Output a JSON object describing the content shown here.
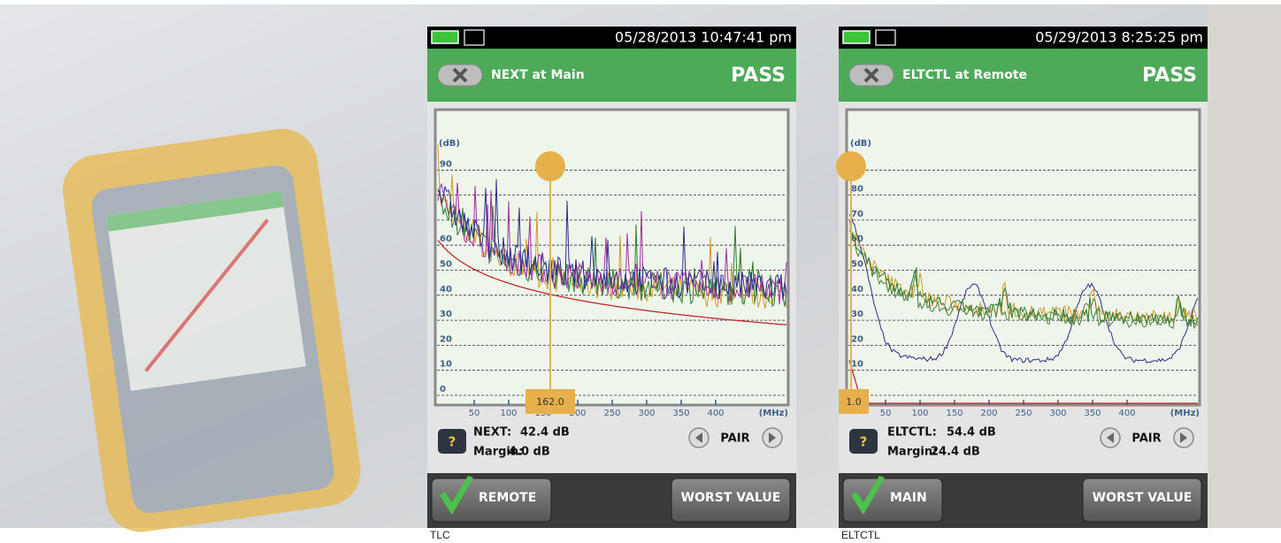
{
  "screens": [
    {
      "status_time": "05/28/2013 10:47:41 pm",
      "title": "NEXT at Main",
      "result": "PASS",
      "y_unit": "(dB)",
      "y_ticks": [
        "0",
        "10",
        "20",
        "30",
        "40",
        "50",
        "60",
        "90"
      ],
      "x_unit": "(MHz)",
      "x_ticks": [
        "50",
        "100",
        "150",
        "200",
        "250",
        "300",
        "350",
        "400"
      ],
      "marker": "162.0",
      "help": "?",
      "readout": [
        {
          "label": "NEXT:",
          "value": "42.4 dB"
        },
        {
          "label": "Margin:",
          "value": "4.0 dB"
        }
      ],
      "pair": "PAIR",
      "left_button": "REMOTE",
      "right_button": "WORST VALUE",
      "caption": "TLC"
    },
    {
      "status_time": "05/29/2013 8:25:25 pm",
      "title": "ELTCTL at Remote",
      "result": "PASS",
      "y_unit": "(dB)",
      "y_ticks": [
        "10",
        "20",
        "30",
        "40",
        "50",
        "60",
        "70",
        "80"
      ],
      "x_unit": "(MHz)",
      "x_ticks": [
        "50",
        "100",
        "150",
        "200",
        "250",
        "300",
        "350",
        "400"
      ],
      "marker": "1.0",
      "help": "?",
      "readout": [
        {
          "label": "ELTCTL:",
          "value": "54.4 dB"
        },
        {
          "label": "Margin:",
          "value": "24.4 dB"
        }
      ],
      "pair": "PAIR",
      "left_button": "MAIN",
      "right_button": "WORST VALUE",
      "caption": "ELTCTL"
    }
  ]
}
